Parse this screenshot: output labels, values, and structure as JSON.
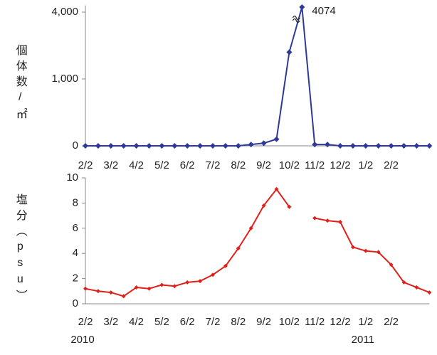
{
  "chart_data": [
    {
      "type": "line",
      "y_label": "個体数/㎡",
      "categories": [
        "2/2",
        null,
        "3/2",
        null,
        "4/2",
        null,
        "5/2",
        null,
        "6/2",
        null,
        "7/2",
        null,
        "8/2",
        null,
        "9/2",
        null,
        "10/2",
        null,
        "11/2",
        null,
        "12/2",
        null,
        "1/2",
        null,
        "2/2",
        null,
        null,
        null
      ],
      "series": [
        {
          "color": "#2e3a96",
          "values": [
            0,
            0,
            0,
            0,
            0,
            0,
            0,
            0,
            0,
            0,
            0,
            0,
            0,
            20,
            40,
            100,
            1400,
            4074,
            20,
            20,
            0,
            0,
            0,
            0,
            0,
            0,
            0,
            0
          ]
        }
      ],
      "ylim": [
        0,
        4100
      ],
      "axis_break": [
        2000,
        4000
      ],
      "yticks": [
        0,
        {
          "value": 1000,
          "label": "1,000"
        },
        {
          "value": 4000,
          "label": "4,000"
        }
      ],
      "data_label": "max",
      "grid": false,
      "marker": "diamond"
    },
    {
      "type": "line",
      "y_label": "塩分（psu）",
      "categories": [
        "2/2",
        null,
        "3/2",
        null,
        "4/2",
        null,
        "5/2",
        null,
        "6/2",
        null,
        "7/2",
        null,
        "8/2",
        null,
        "9/2",
        null,
        "10/2",
        null,
        "11/2",
        null,
        "12/2",
        null,
        "1/2",
        null,
        "2/2",
        null,
        null,
        null
      ],
      "years": [
        "2010",
        null,
        null,
        null,
        null,
        null,
        null,
        null,
        null,
        null,
        null,
        null,
        null,
        null,
        null,
        null,
        null,
        null,
        null,
        null,
        null,
        null,
        "2011",
        null,
        null,
        null,
        null,
        null
      ],
      "series": [
        {
          "color": "#e0201b",
          "values": [
            1.2,
            1.0,
            0.9,
            0.6,
            1.3,
            1.2,
            1.5,
            1.4,
            1.7,
            1.8,
            2.3,
            3.0,
            4.4,
            6.0,
            7.8,
            9.1,
            7.7,
            null,
            6.8,
            6.6,
            6.5,
            4.5,
            4.2,
            4.1,
            3.1,
            1.7,
            1.3,
            0.9
          ]
        }
      ],
      "ylim": [
        0,
        10
      ],
      "yticks": [
        0,
        2,
        4,
        6,
        8,
        10
      ],
      "grid": false,
      "marker": "diamond"
    }
  ]
}
